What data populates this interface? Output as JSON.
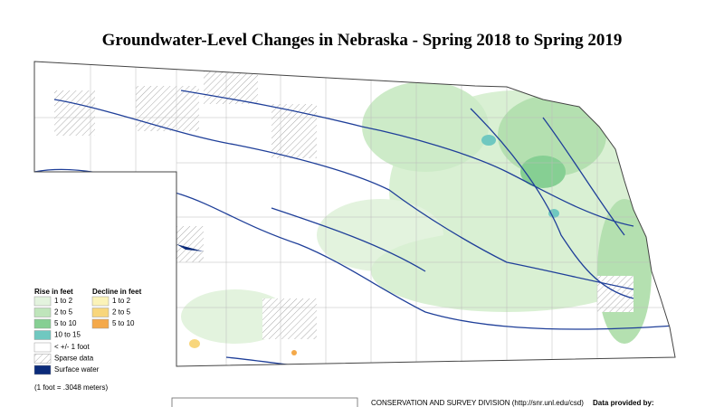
{
  "title": "Groundwater-Level Changes in Nebraska - Spring 2018 to Spring 2019",
  "legend": {
    "rise_heading": "Rise in feet",
    "decline_heading": "Decline in feet",
    "rise": [
      {
        "label": "1 to 2",
        "color": "#e3f3de"
      },
      {
        "label": "2 to 5",
        "color": "#bfe5bb"
      },
      {
        "label": "5 to 10",
        "color": "#86cf93"
      },
      {
        "label": "10 to 15",
        "color": "#6fc8c0"
      }
    ],
    "decline": [
      {
        "label": "1 to 2",
        "color": "#fbf3b8"
      },
      {
        "label": "2 to 5",
        "color": "#f8d67c"
      },
      {
        "label": "5 to 10",
        "color": "#f4a94a"
      }
    ],
    "other": [
      {
        "label": "< +/- 1 foot",
        "color": "#ffffff"
      },
      {
        "label": "Sparse data",
        "color": "url(#hatch)"
      },
      {
        "label": "Surface water",
        "color": "#0b2b7a"
      }
    ],
    "note": "(1 foot = .3048 meters)"
  },
  "footer": {
    "agency": "CONSERVATION AND SURVEY DIVISION (http://snr.unl.edu/csd)",
    "data_provided": "Data provided by:"
  }
}
